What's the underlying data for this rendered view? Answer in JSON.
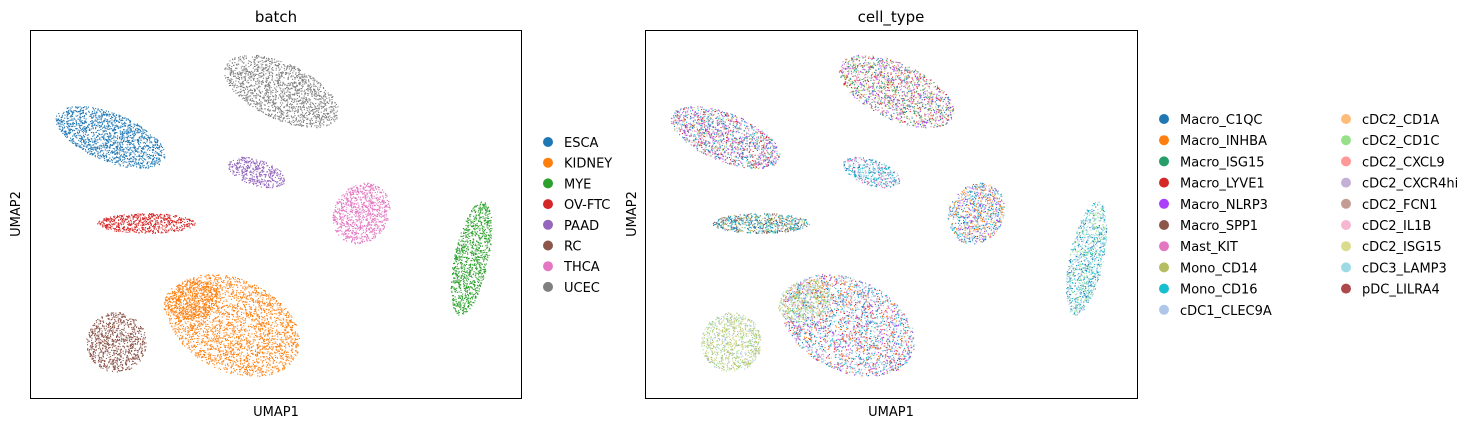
{
  "chart_data": [
    {
      "type": "scatter",
      "title": "batch",
      "xlabel": "UMAP1",
      "ylabel": "UMAP2",
      "grid": false,
      "legend_position": "right",
      "series": [
        {
          "name": "ESCA",
          "color": "#1f77b4"
        },
        {
          "name": "KIDNEY",
          "color": "#ff7f0e"
        },
        {
          "name": "MYE",
          "color": "#2ca02c"
        },
        {
          "name": "OV-FTC",
          "color": "#d62728"
        },
        {
          "name": "PAAD",
          "color": "#9467bd"
        },
        {
          "name": "RC",
          "color": "#8c564b"
        },
        {
          "name": "THCA",
          "color": "#e377c2"
        },
        {
          "name": "UCEC",
          "color": "#7f7f7f"
        }
      ]
    },
    {
      "type": "scatter",
      "title": "cell_type",
      "xlabel": "UMAP1",
      "ylabel": "UMAP2",
      "grid": false,
      "legend_position": "right",
      "legend_columns": 2,
      "series": [
        {
          "name": "Macro_C1QC",
          "color": "#1f77b4"
        },
        {
          "name": "Macro_INHBA",
          "color": "#ff7f0e"
        },
        {
          "name": "Macro_ISG15",
          "color": "#279e68"
        },
        {
          "name": "Macro_LYVE1",
          "color": "#d62728"
        },
        {
          "name": "Macro_NLRP3",
          "color": "#aa40fc"
        },
        {
          "name": "Macro_SPP1",
          "color": "#8c564b"
        },
        {
          "name": "Mast_KIT",
          "color": "#e377c2"
        },
        {
          "name": "Mono_CD14",
          "color": "#b5bd61"
        },
        {
          "name": "Mono_CD16",
          "color": "#17becf"
        },
        {
          "name": "cDC1_CLEC9A",
          "color": "#aec7e8"
        },
        {
          "name": "cDC2_CD1A",
          "color": "#ffbb78"
        },
        {
          "name": "cDC2_CD1C",
          "color": "#98df8a"
        },
        {
          "name": "cDC2_CXCL9",
          "color": "#ff9896"
        },
        {
          "name": "cDC2_CXCR4hi",
          "color": "#c5b0d5"
        },
        {
          "name": "cDC2_FCN1",
          "color": "#c49c94"
        },
        {
          "name": "cDC2_IL1B",
          "color": "#f7b6d2"
        },
        {
          "name": "cDC2_ISG15",
          "color": "#dbdb8d"
        },
        {
          "name": "cDC3_LAMP3",
          "color": "#9edae5"
        },
        {
          "name": "pDC_LILRA4",
          "color": "#ad494a"
        }
      ]
    }
  ]
}
